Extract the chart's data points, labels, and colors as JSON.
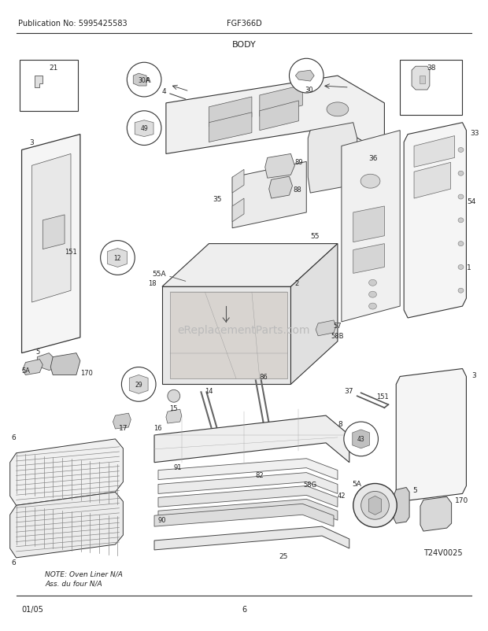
{
  "title": "BODY",
  "pub_no": "Publication No: 5995425583",
  "model": "FGF366D",
  "date": "01/05",
  "page": "6",
  "diagram_id": "T24V0025",
  "note_line1": "NOTE: Oven Liner N/A",
  "note_line2": "Ass. du four N/A",
  "watermark": "eReplacementParts.com",
  "bg_color": "#ffffff",
  "line_color": "#222222",
  "text_color": "#222222",
  "fig_width": 6.2,
  "fig_height": 8.03,
  "dpi": 100
}
